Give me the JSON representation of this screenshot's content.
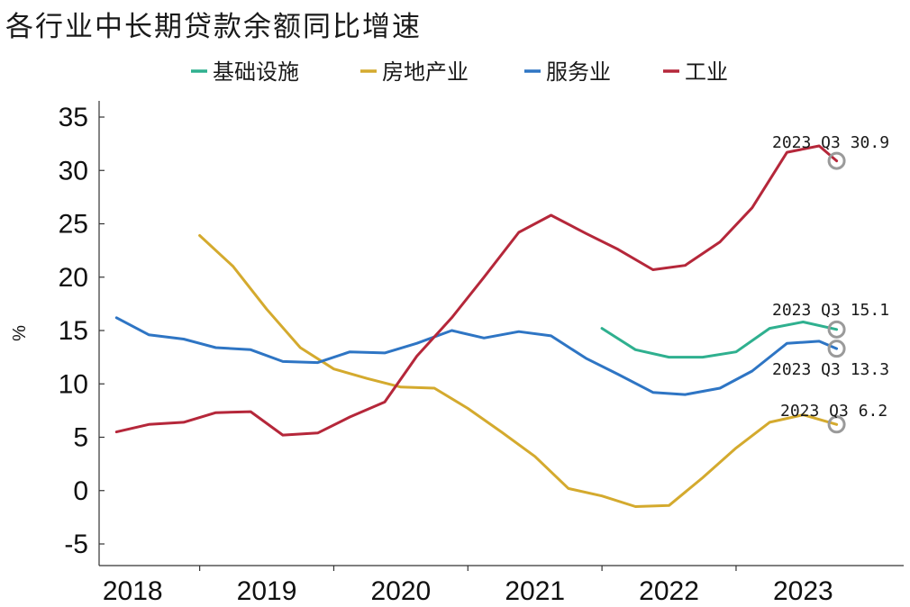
{
  "chart_data": {
    "type": "line",
    "title": "各行业中长期贷款余额同比增速",
    "ylabel": "%",
    "xlabel": "",
    "ylim": [
      -5,
      35
    ],
    "yticks": [
      -5,
      0,
      5,
      10,
      15,
      20,
      25,
      30,
      35
    ],
    "xlim": [
      2017.75,
      2023.75
    ],
    "xticks": [
      {
        "label": "2018",
        "pos": 2018
      },
      {
        "label": "2019",
        "pos": 2019
      },
      {
        "label": "2020",
        "pos": 2020
      },
      {
        "label": "2021",
        "pos": 2021
      },
      {
        "label": "2022",
        "pos": 2022
      },
      {
        "label": "2023",
        "pos": 2023
      }
    ],
    "legend_position": "top",
    "series": [
      {
        "name": "基础设施",
        "color": "#2fb08f",
        "points": [
          [
            2021.5,
            15.2
          ],
          [
            2021.75,
            13.2
          ],
          [
            2022.0,
            12.5
          ],
          [
            2022.25,
            12.5
          ],
          [
            2022.5,
            13.0
          ],
          [
            2022.75,
            15.2
          ],
          [
            2023.0,
            15.8
          ],
          [
            2023.25,
            15.1
          ]
        ]
      },
      {
        "name": "房地产业",
        "color": "#d4aa2e",
        "points": [
          [
            2018.5,
            23.9
          ],
          [
            2018.75,
            21.0
          ],
          [
            2019.0,
            17.0
          ],
          [
            2019.25,
            13.4
          ],
          [
            2019.5,
            11.4
          ],
          [
            2019.75,
            10.5
          ],
          [
            2020.0,
            9.7
          ],
          [
            2020.25,
            9.6
          ],
          [
            2020.5,
            7.7
          ],
          [
            2020.75,
            5.5
          ],
          [
            2021.0,
            3.2
          ],
          [
            2021.25,
            0.2
          ],
          [
            2021.5,
            -0.5
          ],
          [
            2021.75,
            -1.5
          ],
          [
            2022.0,
            -1.4
          ],
          [
            2022.25,
            1.2
          ],
          [
            2022.5,
            4.0
          ],
          [
            2022.75,
            6.4
          ],
          [
            2023.0,
            7.1
          ],
          [
            2023.25,
            6.2
          ]
        ]
      },
      {
        "name": "服务业",
        "color": "#2e75c4",
        "points": [
          [
            2017.88,
            16.2
          ],
          [
            2018.12,
            14.6
          ],
          [
            2018.38,
            14.2
          ],
          [
            2018.62,
            13.4
          ],
          [
            2018.88,
            13.2
          ],
          [
            2019.12,
            12.1
          ],
          [
            2019.38,
            12.0
          ],
          [
            2019.62,
            13.0
          ],
          [
            2019.88,
            12.9
          ],
          [
            2020.12,
            13.8
          ],
          [
            2020.38,
            15.0
          ],
          [
            2020.62,
            14.3
          ],
          [
            2020.88,
            14.9
          ],
          [
            2021.12,
            14.5
          ],
          [
            2021.38,
            12.4
          ],
          [
            2021.62,
            10.9
          ],
          [
            2021.88,
            9.2
          ],
          [
            2022.12,
            9.0
          ],
          [
            2022.38,
            9.6
          ],
          [
            2022.62,
            11.2
          ],
          [
            2022.88,
            13.8
          ],
          [
            2023.12,
            14.0
          ],
          [
            2023.25,
            13.3
          ]
        ]
      },
      {
        "name": "工业",
        "color": "#b5273a",
        "points": [
          [
            2017.88,
            5.5
          ],
          [
            2018.12,
            6.2
          ],
          [
            2018.38,
            6.4
          ],
          [
            2018.62,
            7.3
          ],
          [
            2018.88,
            7.4
          ],
          [
            2019.12,
            5.2
          ],
          [
            2019.38,
            5.4
          ],
          [
            2019.62,
            6.9
          ],
          [
            2019.88,
            8.3
          ],
          [
            2020.12,
            12.6
          ],
          [
            2020.38,
            16.2
          ],
          [
            2020.62,
            20.0
          ],
          [
            2020.88,
            24.2
          ],
          [
            2021.12,
            25.8
          ],
          [
            2021.38,
            24.1
          ],
          [
            2021.62,
            22.6
          ],
          [
            2021.88,
            20.7
          ],
          [
            2022.12,
            21.1
          ],
          [
            2022.38,
            23.3
          ],
          [
            2022.62,
            26.5
          ],
          [
            2022.88,
            31.7
          ],
          [
            2023.12,
            32.3
          ],
          [
            2023.25,
            30.9
          ]
        ]
      }
    ],
    "annotations": [
      {
        "text": "2023 Q3 30.9",
        "x": 2023.25,
        "y": 30.9,
        "series": "工业"
      },
      {
        "text": "2023 Q3 15.1",
        "x": 2023.25,
        "y": 15.1,
        "series": "基础设施"
      },
      {
        "text": "2023 Q3 13.3",
        "x": 2023.25,
        "y": 13.3,
        "series": "服务业"
      },
      {
        "text": "2023 Q3 6.2",
        "x": 2023.25,
        "y": 6.2,
        "series": "房地产业"
      }
    ]
  }
}
